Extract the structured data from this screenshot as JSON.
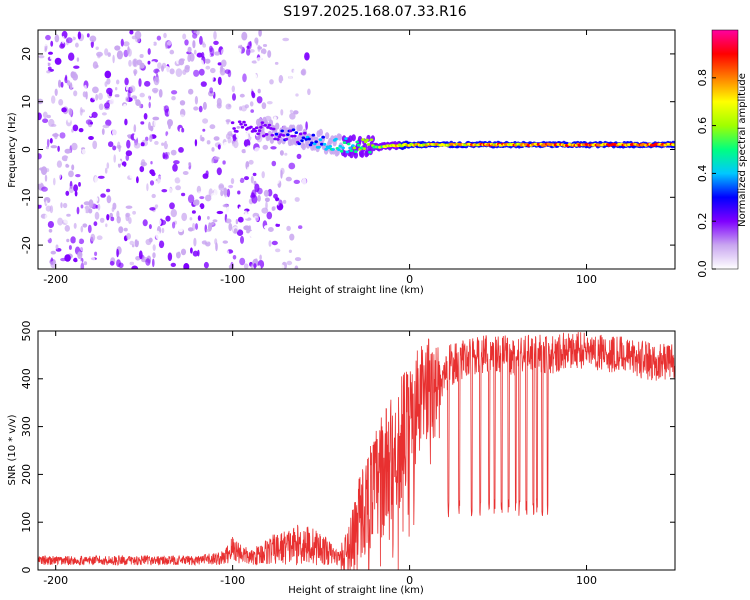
{
  "title": "S197.2025.168.07.33.R16",
  "chart_data": [
    {
      "type": "heatmap",
      "xlabel": "Height of straight line (km)",
      "ylabel": "Frequency (Hz)",
      "xlim": [
        -210,
        150
      ],
      "ylim": [
        -25,
        25
      ],
      "xticks": [
        -200,
        -100,
        0,
        100
      ],
      "yticks": [
        -20,
        -10,
        0,
        10,
        20
      ],
      "colorbar": {
        "label": "Normalized spectral amplitude",
        "range": [
          0,
          1
        ],
        "ticks": [
          "0.0",
          "0.2",
          "0.4",
          "0.6",
          "0.8"
        ],
        "colors": [
          "#ffffff",
          "#c9a6f0",
          "#7f00ff",
          "#0000ff",
          "#00c8ff",
          "#00ff80",
          "#a0ff00",
          "#ffff00",
          "#ff8000",
          "#ff0000",
          "#ff00a0"
        ]
      },
      "ridge": [
        {
          "x": -100,
          "f": 5.0,
          "amp": 0.25
        },
        {
          "x": -80,
          "f": 4.0,
          "amp": 0.3
        },
        {
          "x": -60,
          "f": 2.5,
          "amp": 0.4
        },
        {
          "x": -40,
          "f": 1.0,
          "amp": 0.55
        },
        {
          "x": -20,
          "f": 0.5,
          "amp": 0.75
        },
        {
          "x": 0,
          "f": 1.0,
          "amp": 0.9
        },
        {
          "x": 50,
          "f": 1.0,
          "amp": 0.95
        },
        {
          "x": 100,
          "f": 1.0,
          "amp": 1.0
        },
        {
          "x": 150,
          "f": 1.0,
          "amp": 1.0
        }
      ]
    },
    {
      "type": "line",
      "xlabel": "Height of straight line (km)",
      "ylabel": "SNR (10 * v/v)",
      "xlim": [
        -210,
        150
      ],
      "ylim": [
        0,
        500
      ],
      "xticks": [
        -200,
        -100,
        0,
        100
      ],
      "yticks": [
        0,
        100,
        200,
        300,
        400,
        500
      ],
      "color": "#e83030",
      "series": [
        {
          "x": [
            -210,
            -180,
            -150,
            -120,
            -105,
            -100,
            -90,
            -80,
            -60,
            -50,
            -40,
            -35,
            -30,
            -20,
            -10,
            0,
            10,
            20,
            30,
            40,
            50,
            60,
            70,
            80,
            90,
            100,
            110,
            120,
            130,
            140,
            150
          ],
          "y": [
            20,
            20,
            20,
            20,
            25,
            45,
            25,
            40,
            55,
            45,
            25,
            40,
            100,
            170,
            230,
            310,
            380,
            420,
            440,
            450,
            455,
            445,
            455,
            450,
            460,
            460,
            455,
            450,
            440,
            435,
            440
          ],
          "spread": [
            10,
            10,
            10,
            10,
            15,
            30,
            15,
            30,
            45,
            35,
            15,
            50,
            90,
            120,
            140,
            130,
            110,
            50,
            40,
            40,
            40,
            40,
            40,
            40,
            40,
            40,
            40,
            40,
            40,
            40,
            40
          ]
        }
      ],
      "dropouts_x": [
        22,
        28,
        35,
        40,
        45,
        48,
        52,
        56,
        60,
        62,
        66,
        70,
        72,
        75,
        78
      ]
    }
  ]
}
